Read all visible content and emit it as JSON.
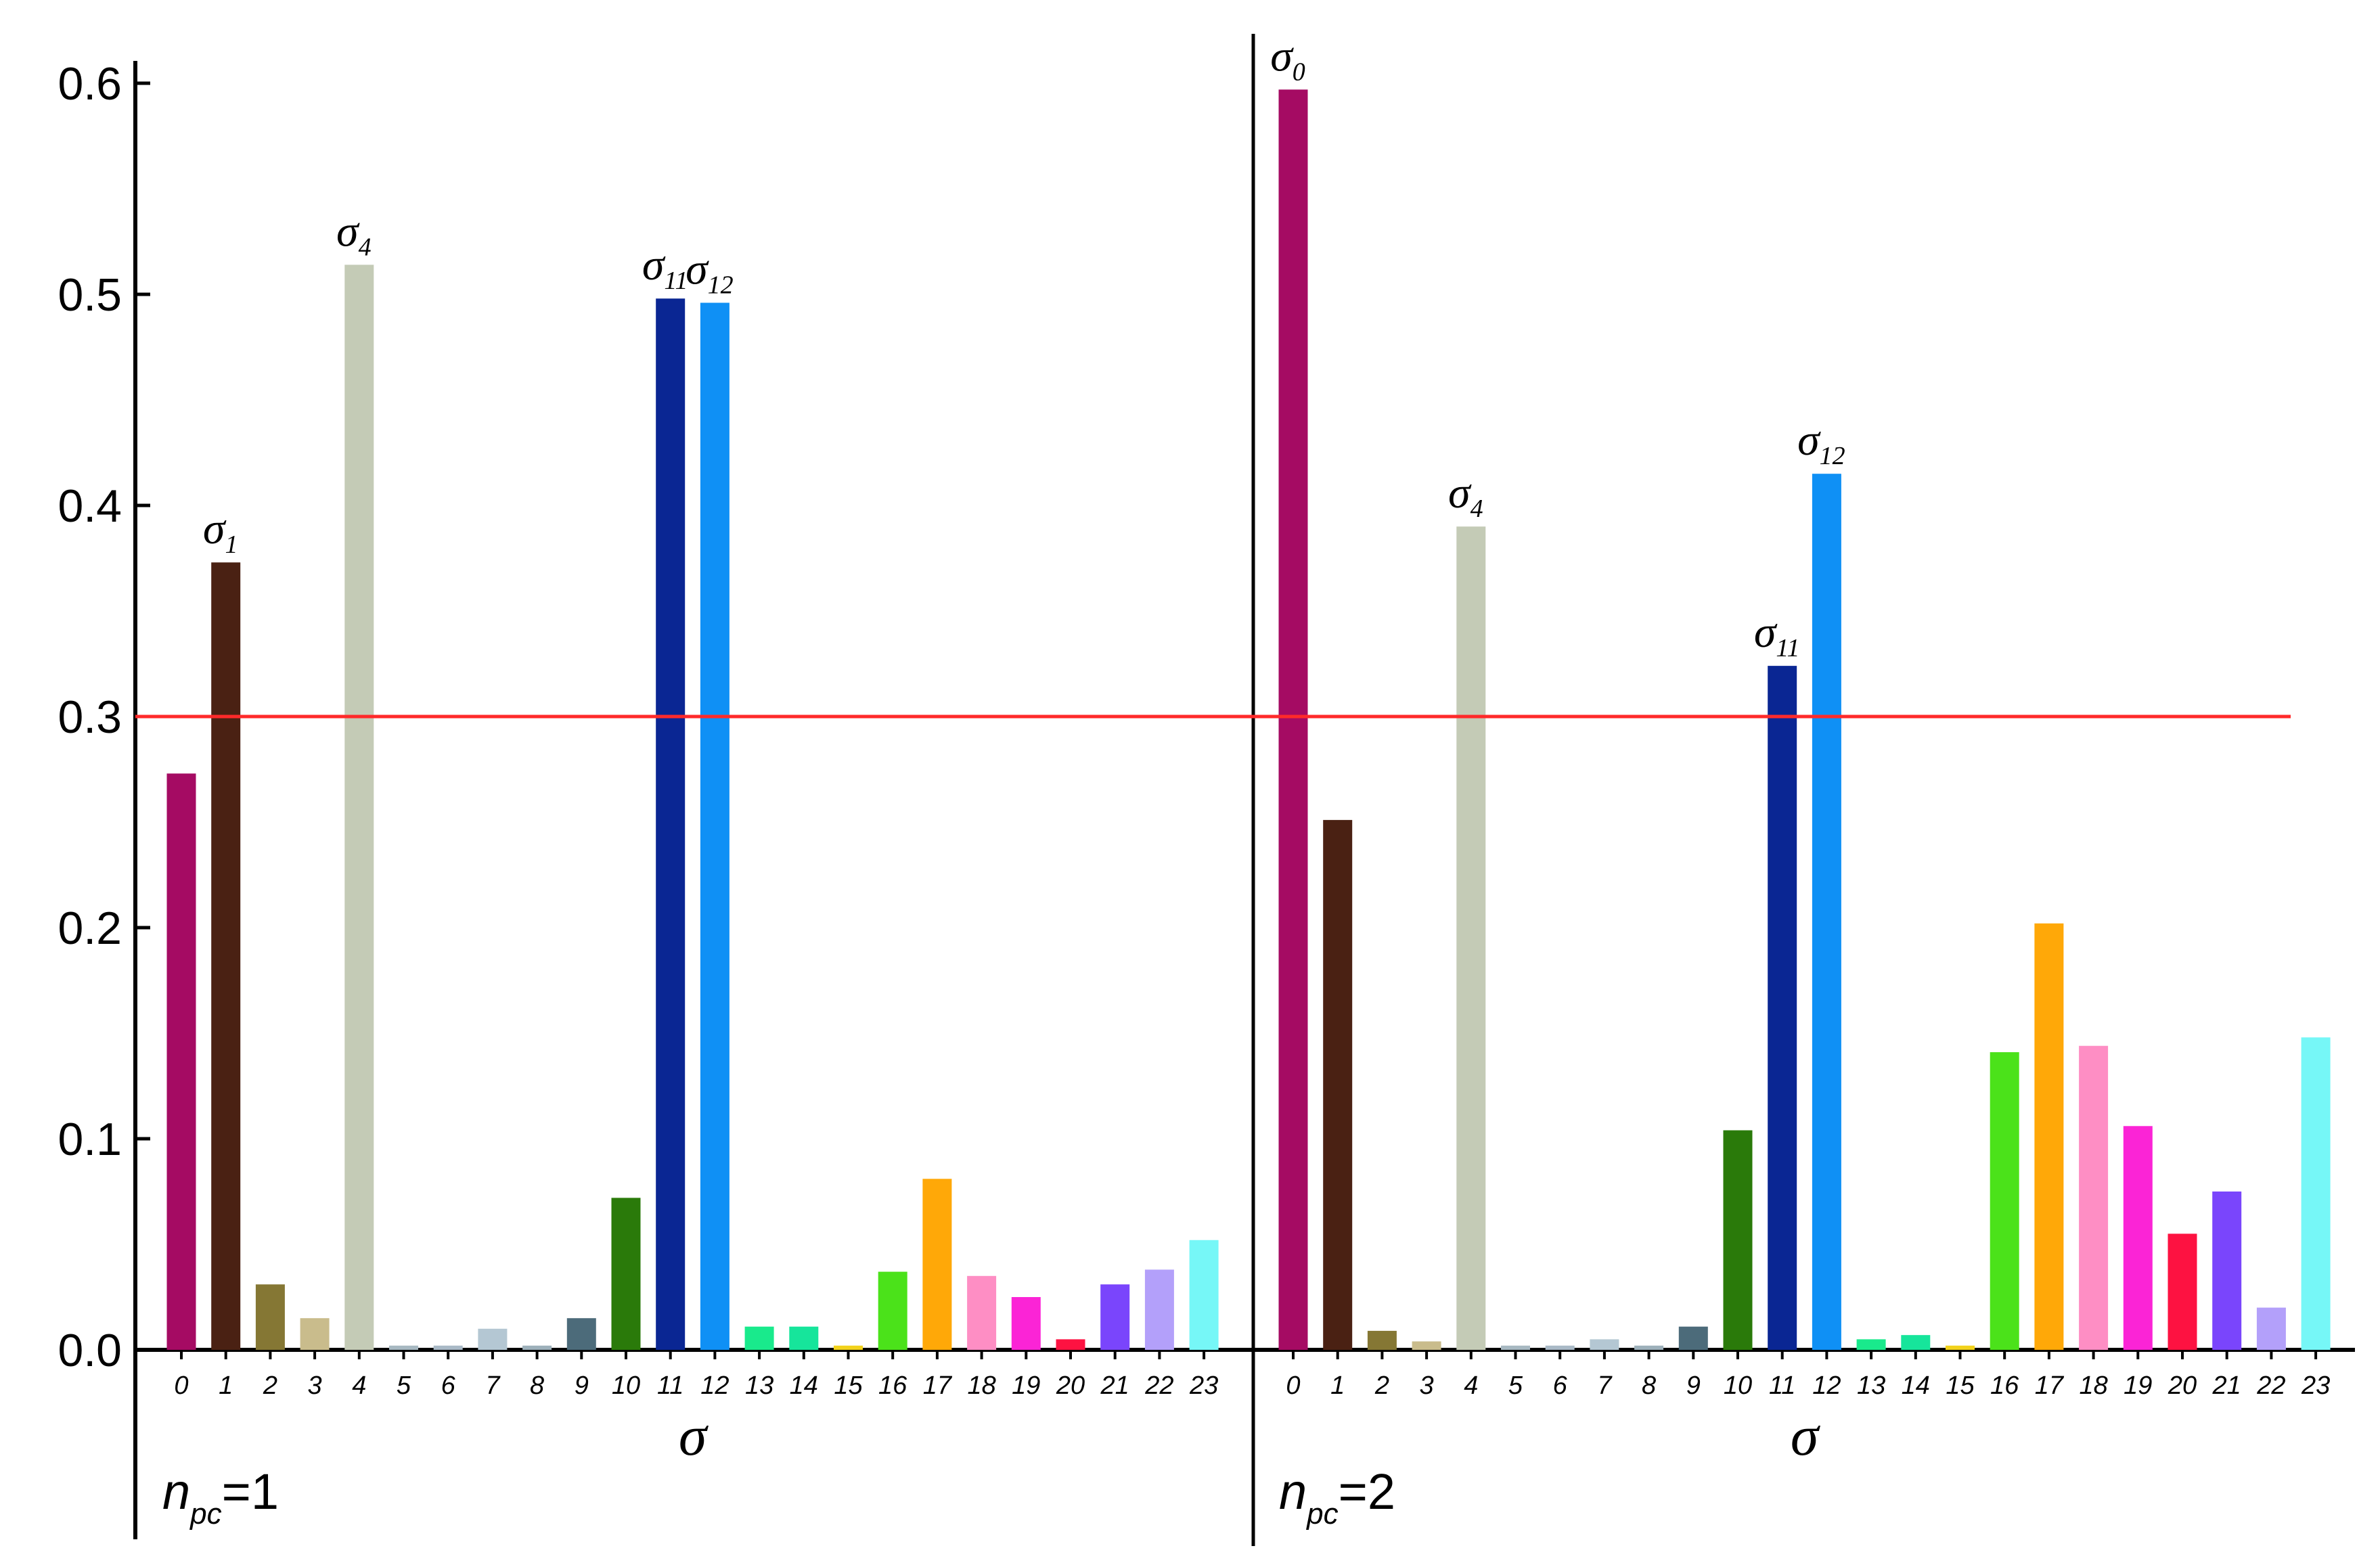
{
  "chart_data": {
    "type": "bar",
    "ylim": [
      0,
      0.6
    ],
    "ytick_labels": [
      "0.0",
      "0.1",
      "0.2",
      "0.3",
      "0.4",
      "0.5",
      "0.6"
    ],
    "threshold": 0.3,
    "threshold_color": "#ff2a2a",
    "categories": [
      "0",
      "1",
      "2",
      "3",
      "4",
      "5",
      "6",
      "7",
      "8",
      "9",
      "10",
      "11",
      "12",
      "13",
      "14",
      "15",
      "16",
      "17",
      "18",
      "19",
      "20",
      "21",
      "22",
      "23"
    ],
    "colors": [
      "#a50b63",
      "#4a2113",
      "#857734",
      "#c9bc8c",
      "#c4cbb6",
      "#a7b8c1",
      "#a9b9c6",
      "#b4c7d3",
      "#9db0ba",
      "#4c6b7a",
      "#2a7a0a",
      "#0a2693",
      "#0f90f5",
      "#19ea8c",
      "#16e59b",
      "#f2d21b",
      "#4be21a",
      "#ffa808",
      "#fe8ec4",
      "#fb24d6",
      "#fd1241",
      "#7a45fc",
      "#b3a0fa",
      "#76f7f7"
    ],
    "xlabel": "σ",
    "panels": [
      {
        "label_n": "n",
        "label_sub": "pc",
        "label_value": "=1",
        "values": [
          0.273,
          0.373,
          0.031,
          0.015,
          0.514,
          0.002,
          0.002,
          0.01,
          0.002,
          0.015,
          0.072,
          0.498,
          0.496,
          0.011,
          0.011,
          0.002,
          0.037,
          0.081,
          0.035,
          0.025,
          0.005,
          0.031,
          0.038,
          0.052
        ],
        "annotations": [
          {
            "index": 1,
            "sym": "σ",
            "sub": "1"
          },
          {
            "index": 4,
            "sym": "σ",
            "sub": "4"
          },
          {
            "index": 11,
            "sym": "σ",
            "sub": "11"
          },
          {
            "index": 12,
            "sym": "σ",
            "sub": "12"
          }
        ]
      },
      {
        "label_n": "n",
        "label_sub": "pc",
        "label_value": "=2",
        "values": [
          0.597,
          0.251,
          0.009,
          0.004,
          0.39,
          0.002,
          0.002,
          0.005,
          0.002,
          0.011,
          0.104,
          0.324,
          0.415,
          0.005,
          0.007,
          0.002,
          0.141,
          0.202,
          0.144,
          0.106,
          0.055,
          0.075,
          0.02,
          0.148
        ],
        "annotations": [
          {
            "index": 0,
            "sym": "σ",
            "sub": "0"
          },
          {
            "index": 4,
            "sym": "σ",
            "sub": "4"
          },
          {
            "index": 11,
            "sym": "σ",
            "sub": "11"
          },
          {
            "index": 12,
            "sym": "σ",
            "sub": "12"
          }
        ]
      }
    ]
  }
}
